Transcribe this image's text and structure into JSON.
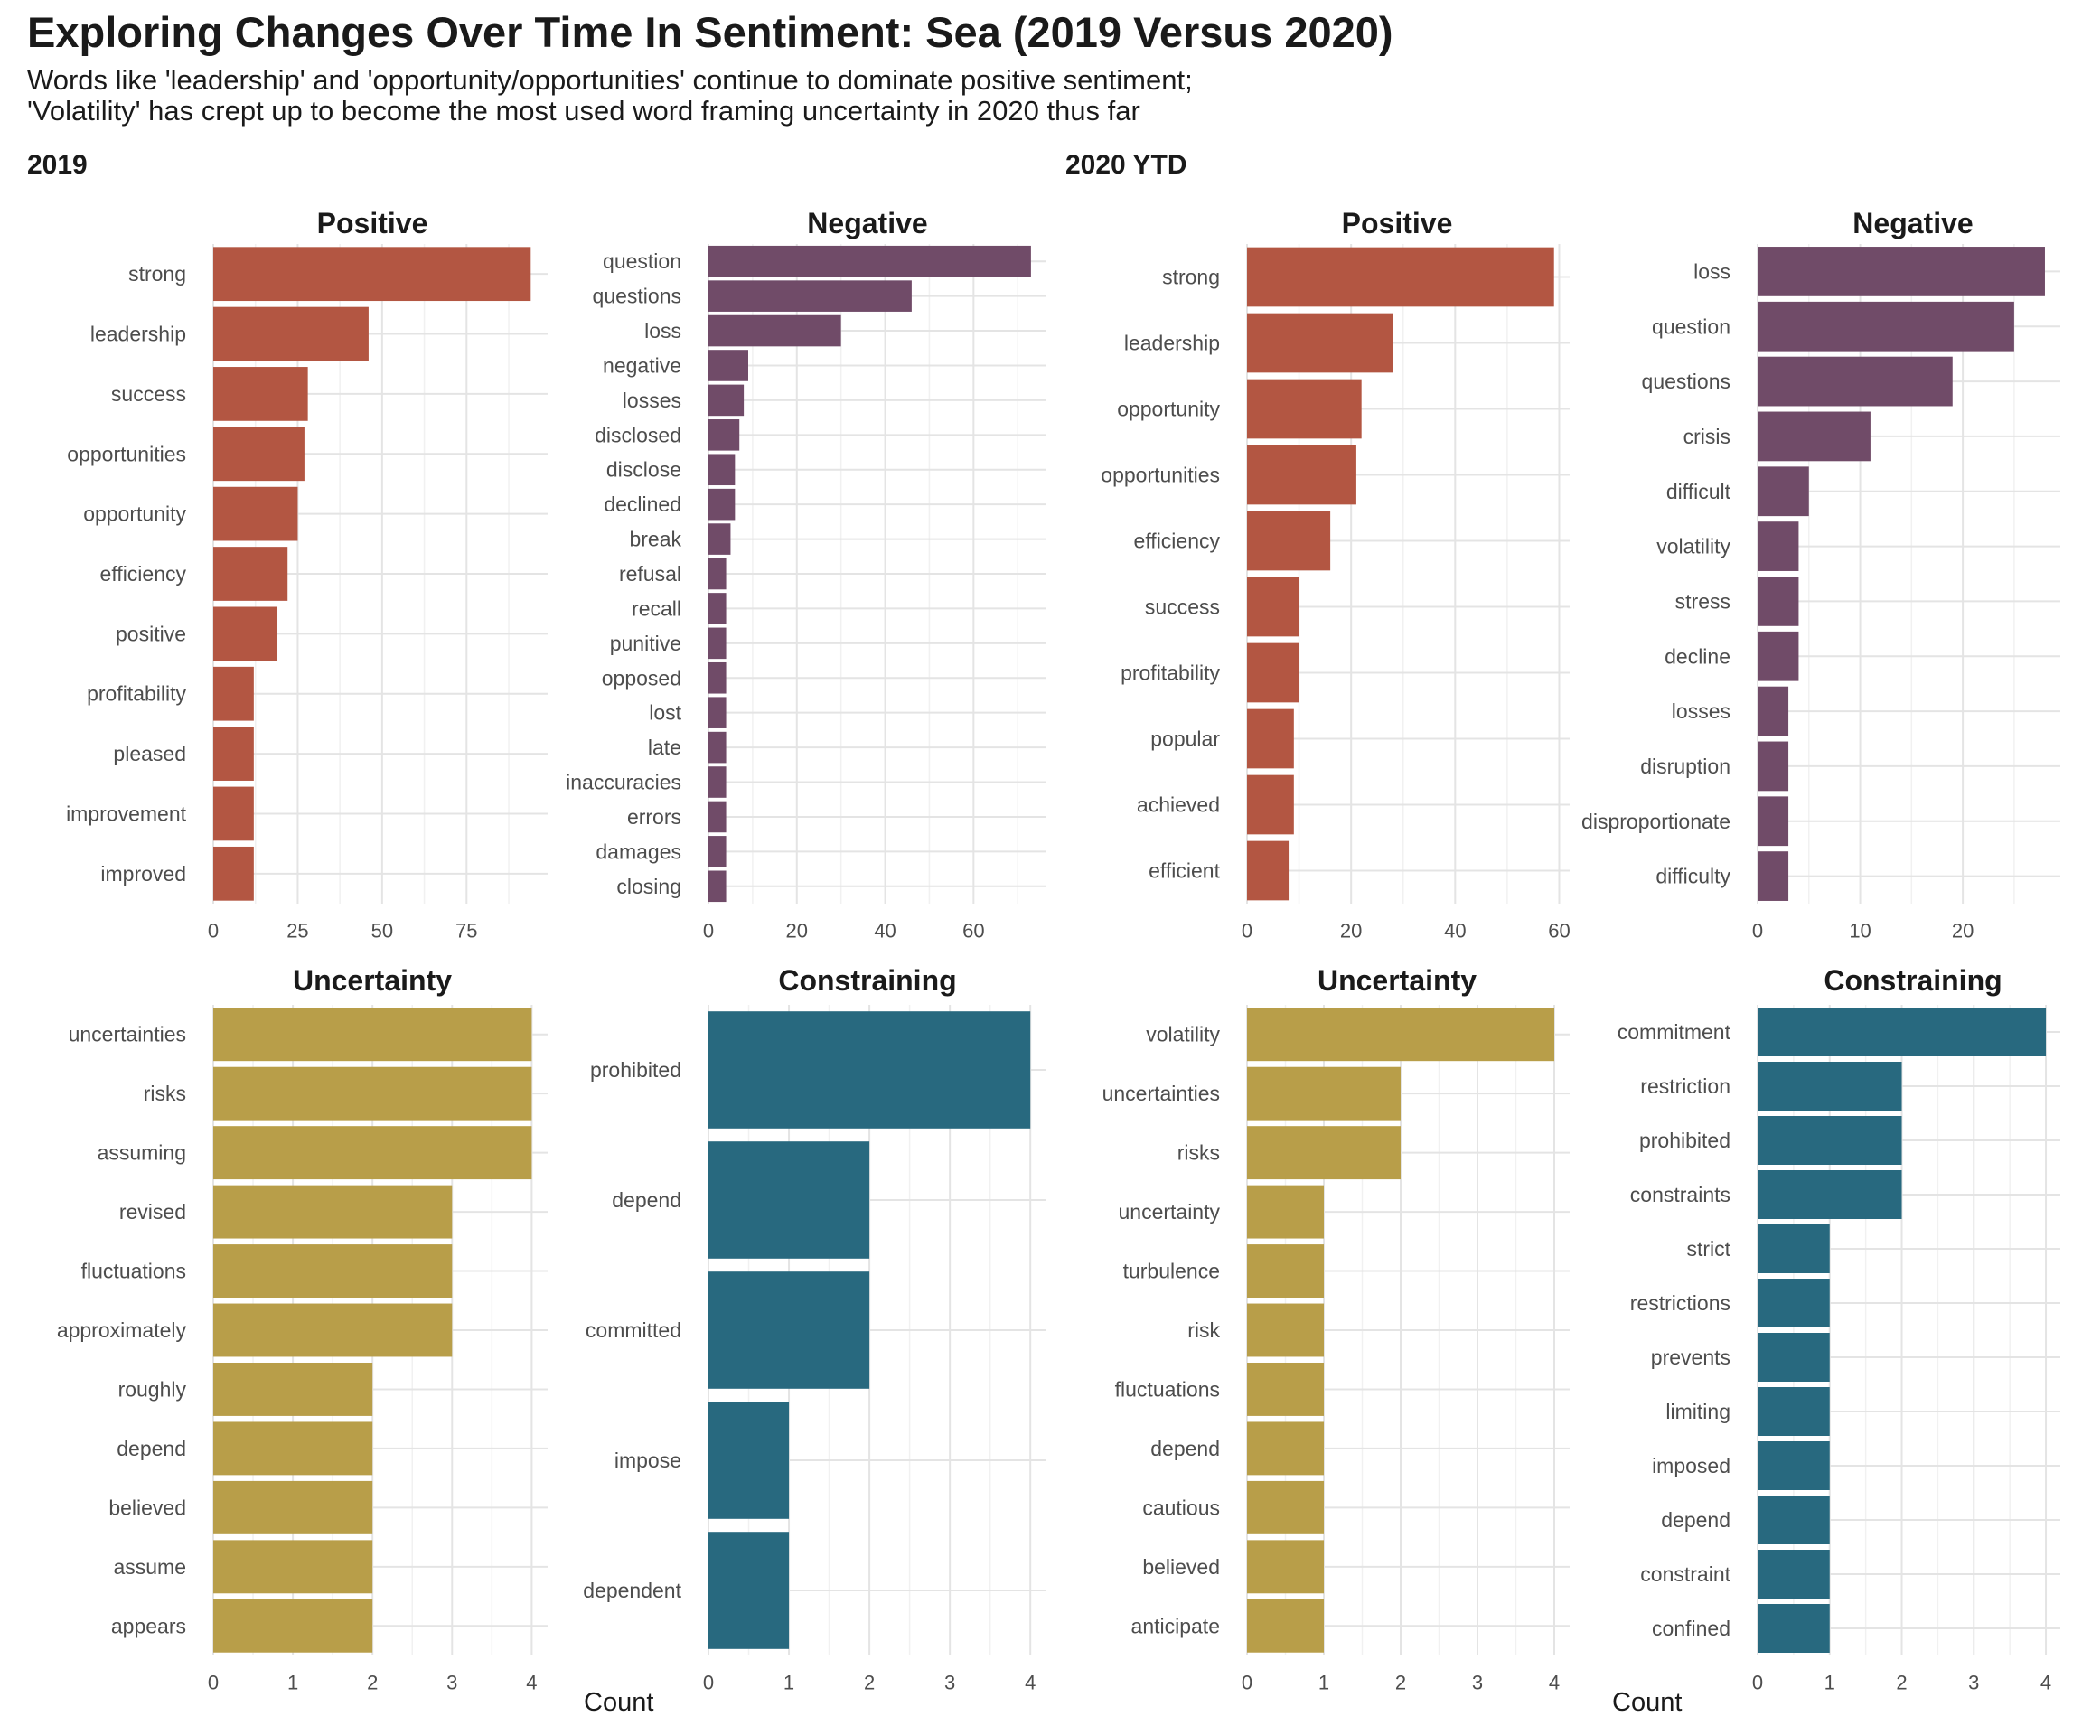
{
  "title": "Exploring Changes Over Time In Sentiment: Sea (2019 Versus 2020)",
  "subtitle_lines": [
    "Words like 'leadership' and 'opportunity/opportunities' continue to dominate positive sentiment;",
    "'Volatility' has crept up to become the most used word framing uncertainty in 2020 thus far"
  ],
  "group_labels": {
    "left": "2019",
    "right": "2020 YTD"
  },
  "x_axis_label": "Count",
  "colors": {
    "positive": "#B35642",
    "negative": "#704B68",
    "uncertainty": "#B89E49",
    "constraining": "#28697F"
  },
  "chart_data": [
    {
      "type": "bar",
      "orientation": "horizontal",
      "group": "2019",
      "title": "Positive",
      "sentiment": "positive",
      "categories": [
        "strong",
        "leadership",
        "success",
        "opportunities",
        "opportunity",
        "efficiency",
        "positive",
        "profitability",
        "pleased",
        "improvement",
        "improved"
      ],
      "values": [
        94,
        46,
        28,
        27,
        25,
        22,
        19,
        12,
        12,
        12,
        12
      ],
      "xlim": [
        0,
        99
      ],
      "xticks": [
        0,
        25,
        50,
        75
      ],
      "grid": true
    },
    {
      "type": "bar",
      "orientation": "horizontal",
      "group": "2019",
      "title": "Negative",
      "sentiment": "negative",
      "categories": [
        "question",
        "questions",
        "loss",
        "negative",
        "losses",
        "disclosed",
        "disclose",
        "declined",
        "break",
        "refusal",
        "recall",
        "punitive",
        "opposed",
        "lost",
        "late",
        "inaccuracies",
        "errors",
        "damages",
        "closing"
      ],
      "values": [
        73,
        46,
        30,
        9,
        8,
        7,
        6,
        6,
        5,
        4,
        4,
        4,
        4,
        4,
        4,
        4,
        4,
        4,
        4
      ],
      "xlim": [
        0,
        76.5
      ],
      "xticks": [
        0,
        20,
        40,
        60
      ],
      "grid": true
    },
    {
      "type": "bar",
      "orientation": "horizontal",
      "group": "2020 YTD",
      "title": "Positive",
      "sentiment": "positive",
      "categories": [
        "strong",
        "leadership",
        "opportunity",
        "opportunities",
        "efficiency",
        "success",
        "profitability",
        "popular",
        "achieved",
        "efficient"
      ],
      "values": [
        59,
        28,
        22,
        21,
        16,
        10,
        10,
        9,
        9,
        8
      ],
      "xlim": [
        0,
        62
      ],
      "xticks": [
        0,
        20,
        40,
        60
      ],
      "grid": true
    },
    {
      "type": "bar",
      "orientation": "horizontal",
      "group": "2020 YTD",
      "title": "Negative",
      "sentiment": "negative",
      "categories": [
        "loss",
        "question",
        "questions",
        "crisis",
        "difficult",
        "volatility",
        "stress",
        "decline",
        "losses",
        "disruption",
        "disproportionate",
        "difficulty"
      ],
      "values": [
        28,
        25,
        19,
        11,
        5,
        4,
        4,
        4,
        3,
        3,
        3,
        3
      ],
      "xlim": [
        0,
        29.5
      ],
      "xticks": [
        0,
        10,
        20
      ],
      "grid": true
    },
    {
      "type": "bar",
      "orientation": "horizontal",
      "group": "2019",
      "title": "Uncertainty",
      "sentiment": "uncertainty",
      "categories": [
        "uncertainties",
        "risks",
        "assuming",
        "revised",
        "fluctuations",
        "approximately",
        "roughly",
        "depend",
        "believed",
        "assume",
        "appears"
      ],
      "values": [
        4,
        4,
        4,
        3,
        3,
        3,
        2,
        2,
        2,
        2,
        2
      ],
      "xlim": [
        0,
        4.2
      ],
      "xticks": [
        0,
        1,
        2,
        3,
        4
      ],
      "grid": true
    },
    {
      "type": "bar",
      "orientation": "horizontal",
      "group": "2019",
      "title": "Constraining",
      "sentiment": "constraining",
      "categories": [
        "prohibited",
        "depend",
        "committed",
        "impose",
        "dependent"
      ],
      "values": [
        4,
        2,
        2,
        1,
        1
      ],
      "xlim": [
        0,
        4.2
      ],
      "xticks": [
        0,
        1,
        2,
        3,
        4
      ],
      "grid": true
    },
    {
      "type": "bar",
      "orientation": "horizontal",
      "group": "2020 YTD",
      "title": "Uncertainty",
      "sentiment": "uncertainty",
      "categories": [
        "volatility",
        "uncertainties",
        "risks",
        "uncertainty",
        "turbulence",
        "risk",
        "fluctuations",
        "depend",
        "cautious",
        "believed",
        "anticipate"
      ],
      "values": [
        4,
        2,
        2,
        1,
        1,
        1,
        1,
        1,
        1,
        1,
        1
      ],
      "xlim": [
        0,
        4.2
      ],
      "xticks": [
        0,
        1,
        2,
        3,
        4
      ],
      "grid": true
    },
    {
      "type": "bar",
      "orientation": "horizontal",
      "group": "2020 YTD",
      "title": "Constraining",
      "sentiment": "constraining",
      "categories": [
        "commitment",
        "restriction",
        "prohibited",
        "constraints",
        "strict",
        "restrictions",
        "prevents",
        "limiting",
        "imposed",
        "depend",
        "constraint",
        "confined"
      ],
      "values": [
        4,
        2,
        2,
        2,
        1,
        1,
        1,
        1,
        1,
        1,
        1,
        1
      ],
      "xlim": [
        0,
        4.2
      ],
      "xticks": [
        0,
        1,
        2,
        3,
        4
      ],
      "grid": true
    }
  ]
}
